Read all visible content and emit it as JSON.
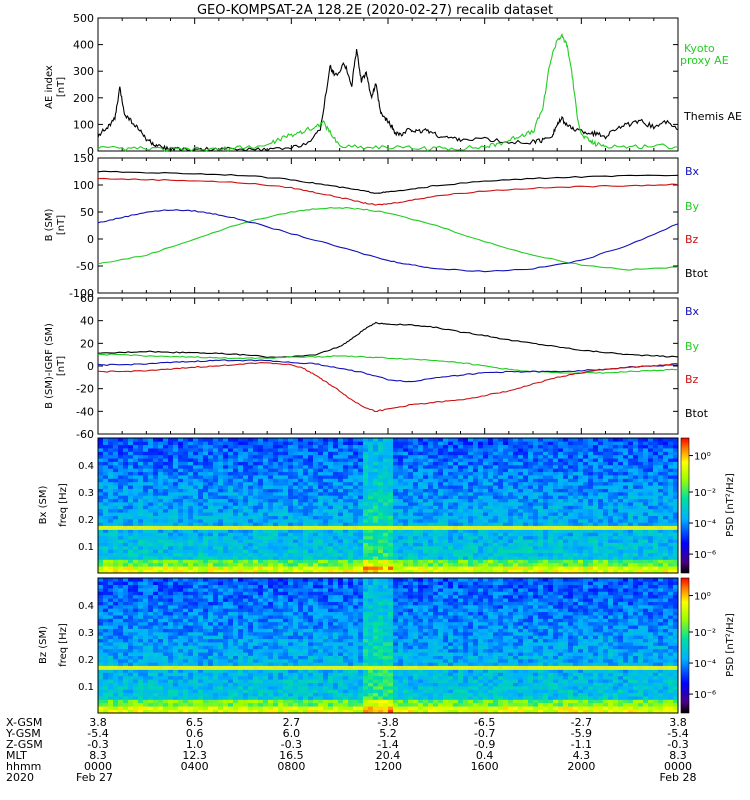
{
  "title": "GEO-KOMPSAT-2A 128.2E (2020-02-27) recalib dataset",
  "colors": {
    "black": "#000000",
    "green": "#22cc22",
    "red": "#cc1111",
    "blue": "#1111bb"
  },
  "chart_data": [
    {
      "type": "line",
      "panel": "ae",
      "ylabel": [
        "AE index",
        "[nT]"
      ],
      "ylim": [
        0,
        500
      ],
      "yticks": [
        "0",
        "100",
        "200",
        "300",
        "400",
        "500"
      ],
      "xlim_hours": [
        0,
        24
      ],
      "series": [
        {
          "name": "Themis AE",
          "color": "black",
          "x": [
            0,
            0.4,
            0.7,
            0.9,
            1.1,
            1.4,
            1.7,
            2.0,
            2.3,
            2.6,
            3.0,
            3.4,
            4,
            5,
            6,
            7,
            8,
            8.8,
            9.2,
            9.6,
            9.8,
            10.2,
            10.5,
            10.7,
            10.9,
            11.1,
            11.3,
            11.5,
            11.7,
            11.9,
            12.1,
            12.3,
            12.6,
            12.9,
            13.2,
            13.6,
            14.0,
            14.5,
            15,
            16,
            17,
            18,
            18.4,
            18.8,
            19.0,
            19.2,
            19.5,
            19.8,
            20.2,
            20.6,
            21.0,
            21.5,
            22,
            22.5,
            23,
            23.5,
            24
          ],
          "values": [
            60,
            90,
            120,
            235,
            140,
            110,
            80,
            45,
            25,
            12,
            8,
            5,
            5,
            5,
            5,
            5,
            10,
            40,
            80,
            320,
            280,
            330,
            250,
            380,
            260,
            300,
            200,
            250,
            140,
            120,
            100,
            70,
            60,
            85,
            70,
            80,
            60,
            50,
            45,
            45,
            30,
            35,
            40,
            60,
            100,
            120,
            90,
            80,
            70,
            65,
            55,
            90,
            100,
            110,
            90,
            110,
            80
          ]
        },
        {
          "name": "Kyoto proxy AE",
          "color": "green",
          "x": [
            0,
            1,
            2,
            3,
            4,
            5,
            6,
            7,
            7.5,
            8,
            8.5,
            9,
            9.3,
            9.6,
            10,
            11,
            12,
            13,
            14,
            15,
            16,
            16.5,
            17,
            17.5,
            18,
            18.4,
            18.7,
            19.0,
            19.2,
            19.4,
            19.6,
            19.8,
            20.0,
            20.3,
            20.6,
            21,
            22,
            23,
            24
          ],
          "values": [
            10,
            8,
            8,
            6,
            6,
            6,
            12,
            22,
            45,
            60,
            75,
            90,
            110,
            70,
            20,
            15,
            15,
            10,
            10,
            10,
            15,
            25,
            40,
            60,
            70,
            160,
            330,
            420,
            430,
            400,
            300,
            150,
            60,
            40,
            25,
            20,
            15,
            20,
            15
          ]
        }
      ],
      "legend": [
        {
          "text": "Kyoto",
          "color": "green"
        },
        {
          "text": "proxy AE",
          "color": "green"
        },
        {
          "text": "Themis AE",
          "color": "black"
        }
      ]
    },
    {
      "type": "line",
      "panel": "b_sm",
      "ylabel": [
        "B (SM)",
        "[nT]"
      ],
      "ylim": [
        -100,
        150
      ],
      "yticks": [
        "-100",
        "-50",
        "0",
        "50",
        "100",
        "150"
      ],
      "xlim_hours": [
        0,
        24
      ],
      "series": [
        {
          "name": "Btot",
          "color": "black",
          "x": [
            0,
            2,
            4,
            6,
            8,
            9,
            10,
            11,
            11.5,
            12,
            13,
            14,
            16,
            18,
            20,
            22,
            24
          ],
          "values": [
            125,
            123,
            121,
            118,
            110,
            103,
            96,
            89,
            85,
            87,
            92,
            99,
            107,
            112,
            115,
            117,
            118
          ]
        },
        {
          "name": "Bz",
          "color": "red",
          "x": [
            0,
            2,
            4,
            6,
            8,
            9,
            10,
            11,
            11.5,
            12,
            13,
            14,
            16,
            18,
            20,
            22,
            24
          ],
          "values": [
            112,
            110,
            108,
            104,
            95,
            86,
            77,
            67,
            63,
            65,
            72,
            80,
            89,
            94,
            97,
            99,
            101
          ]
        },
        {
          "name": "By",
          "color": "green",
          "x": [
            0,
            2,
            4,
            6,
            8,
            9,
            10,
            11,
            12,
            14,
            16,
            18,
            20,
            22,
            24
          ],
          "values": [
            -46,
            -30,
            0,
            30,
            50,
            56,
            58,
            55,
            48,
            25,
            -5,
            -30,
            -48,
            -57,
            -52
          ]
        },
        {
          "name": "Bx",
          "color": "blue",
          "x": [
            0,
            1,
            2,
            3,
            4,
            5,
            6,
            8,
            10,
            12,
            13,
            14,
            16,
            18,
            20,
            22,
            24
          ],
          "values": [
            30,
            40,
            50,
            54,
            52,
            45,
            35,
            10,
            -15,
            -40,
            -48,
            -55,
            -60,
            -55,
            -40,
            -10,
            28
          ]
        }
      ],
      "legend": [
        {
          "text": "Bx",
          "color": "blue"
        },
        {
          "text": "By",
          "color": "green"
        },
        {
          "text": "Bz",
          "color": "red"
        },
        {
          "text": "Btot",
          "color": "black"
        }
      ]
    },
    {
      "type": "line",
      "panel": "b_igrf",
      "ylabel": [
        "B (SM)-IGRF (SM)",
        "[nT]"
      ],
      "ylim": [
        -60,
        60
      ],
      "yticks": [
        "-60",
        "-40",
        "-20",
        "0",
        "20",
        "40",
        "60"
      ],
      "xlim_hours": [
        0,
        24
      ],
      "series": [
        {
          "name": "Btot",
          "color": "black",
          "x": [
            0,
            1,
            2,
            3,
            4,
            5,
            6,
            7,
            8,
            9,
            10,
            10.5,
            11,
            11.5,
            12,
            13,
            14,
            15,
            16,
            17,
            18,
            19,
            20,
            21,
            22,
            23,
            24
          ],
          "values": [
            11,
            12,
            13,
            12,
            12,
            11,
            10,
            8,
            8,
            10,
            17,
            24,
            32,
            38,
            37,
            36,
            34,
            30,
            27,
            23,
            20,
            17,
            14,
            12,
            10,
            9,
            8
          ]
        },
        {
          "name": "By",
          "color": "green",
          "x": [
            0,
            1,
            2,
            3,
            4,
            5,
            6,
            7,
            8,
            9,
            10,
            11,
            12,
            13,
            14,
            15,
            16,
            17,
            18,
            19,
            20,
            21,
            22,
            23,
            24
          ],
          "values": [
            10,
            10,
            9,
            8,
            8,
            7,
            7,
            7,
            8,
            8,
            9,
            8,
            7,
            6,
            5,
            3,
            0,
            -3,
            -5,
            -6,
            -6,
            -6,
            -5,
            -4,
            -3
          ]
        },
        {
          "name": "Bx",
          "color": "blue",
          "x": [
            0,
            1,
            2,
            3,
            4,
            5,
            6,
            7,
            8,
            9,
            10,
            11,
            12,
            13,
            14,
            15,
            16,
            17,
            18,
            19,
            20,
            21,
            22,
            23,
            24
          ],
          "values": [
            1,
            1,
            2,
            3,
            4,
            5,
            5,
            5,
            3,
            2,
            -2,
            -6,
            -12,
            -14,
            -10,
            -8,
            -6,
            -5,
            -5,
            -5,
            -4,
            -3,
            -1,
            0,
            1
          ]
        },
        {
          "name": "Bz",
          "color": "red",
          "x": [
            0,
            1,
            2,
            3,
            4,
            5,
            6,
            7,
            8,
            8.5,
            9,
            9.5,
            10,
            10.5,
            11,
            11.5,
            12,
            13,
            14,
            15,
            16,
            17,
            18,
            19,
            20,
            21,
            22,
            23,
            24
          ],
          "values": [
            -5,
            -5,
            -4,
            -3,
            -1,
            0,
            2,
            3,
            1,
            -2,
            -8,
            -15,
            -22,
            -30,
            -36,
            -40,
            -38,
            -34,
            -32,
            -30,
            -26,
            -22,
            -16,
            -10,
            -6,
            -3,
            -1,
            0,
            2
          ]
        }
      ],
      "legend": [
        {
          "text": "Bx",
          "color": "blue"
        },
        {
          "text": "By",
          "color": "green"
        },
        {
          "text": "Bz",
          "color": "red"
        },
        {
          "text": "Btot",
          "color": "black"
        }
      ]
    },
    {
      "type": "heatmap",
      "panel": "spec_bx",
      "ylabel": [
        "Bx (SM)",
        "freq [Hz]"
      ],
      "ylim": [
        0,
        0.5
      ],
      "yticks": [
        "0.1",
        "0.2",
        "0.3",
        "0.4"
      ],
      "harmonic_line_hz": 0.167,
      "colorbar": {
        "label": "PSD [nT²/Hz]",
        "ticks": [
          "10⁰",
          "10⁻²",
          "10⁻⁴",
          "10⁻⁶"
        ]
      }
    },
    {
      "type": "heatmap",
      "panel": "spec_bz",
      "ylabel": [
        "Bz (SM)",
        "freq [Hz]"
      ],
      "ylim": [
        0,
        0.5
      ],
      "yticks": [
        "0.1",
        "0.2",
        "0.3",
        "0.4"
      ],
      "harmonic_line_hz": 0.167,
      "colorbar": {
        "label": "PSD [nT²/Hz]",
        "ticks": [
          "10⁰",
          "10⁻²",
          "10⁻⁴",
          "10⁻⁶"
        ]
      }
    }
  ],
  "ephemeris": {
    "labels": [
      "X-GSM",
      "Y-GSM",
      "Z-GSM",
      "MLT",
      "hhmm",
      "2020"
    ],
    "columns": [
      {
        "values": [
          "3.8",
          "-5.4",
          "-0.3",
          "8.3",
          "0000",
          "Feb 27"
        ]
      },
      {
        "values": [
          "6.5",
          "0.6",
          "1.0",
          "12.3",
          "0400",
          ""
        ]
      },
      {
        "values": [
          "2.7",
          "6.0",
          "-0.3",
          "16.5",
          "0800",
          ""
        ]
      },
      {
        "values": [
          "-3.8",
          "5.2",
          "-1.4",
          "20.4",
          "1200",
          ""
        ]
      },
      {
        "values": [
          "-6.5",
          "-0.7",
          "-0.9",
          "0.4",
          "1600",
          ""
        ]
      },
      {
        "values": [
          "-2.7",
          "-5.9",
          "-1.1",
          "4.3",
          "2000",
          ""
        ]
      },
      {
        "values": [
          "3.8",
          "-5.4",
          "-0.3",
          "8.3",
          "0000",
          "Feb 28"
        ]
      }
    ]
  }
}
